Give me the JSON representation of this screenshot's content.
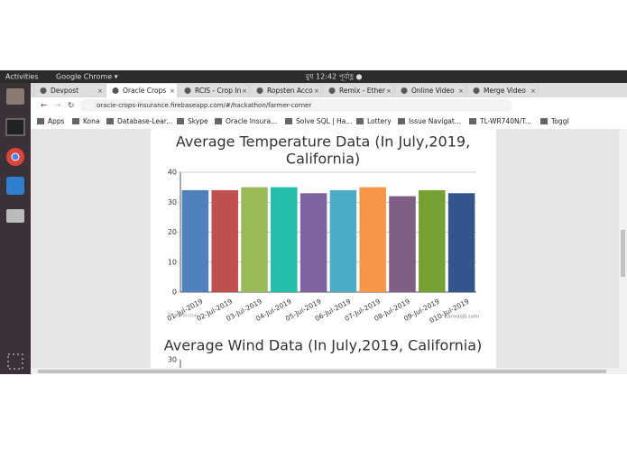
{
  "topbar": {
    "activities": "Activities",
    "app": "Google Chrome ▾",
    "clock": "বুধ 12:42 পূর্বাহ্ণ ●"
  },
  "tabs": [
    "Devpost",
    "Oracle Crops",
    "RCIS - Crop In",
    "Ropsten Acco",
    "Remix - Ether",
    "Online Video",
    "Merge Video"
  ],
  "address": "oracle-crops-insurance.firebaseapp.com/#/hackathon/farmer-corner",
  "bookmarks": [
    "Apps",
    "Kona",
    "Database-Lear...",
    "Skype",
    "Oracle Insura...",
    "Solve SQL | Ha...",
    "Lottery",
    "Issue Navigat...",
    "TL-WR740N/T...",
    "Toggl"
  ],
  "chart_data": [
    {
      "type": "bar",
      "title": [
        "Average Temperature Data (In July,2019,",
        "California)"
      ],
      "categories": [
        "01-Jul-2019",
        "02-Jul-2019",
        "03-Jul-2019",
        "04-Jul-2019",
        "05-Jul-2019",
        "06-Jul-2019",
        "07-Jul-2019",
        "08-Jul-2019",
        "09-Jul-2019",
        "010-Jul-2019"
      ],
      "values": [
        34,
        34,
        35,
        35,
        33,
        34,
        35,
        32,
        34,
        33
      ],
      "colors": [
        "#4f81bc",
        "#c0504e",
        "#9bbb58",
        "#23bfaa",
        "#8064a1",
        "#4aacc5",
        "#f79647",
        "#7f6084",
        "#77a033",
        "#33558b"
      ],
      "ylim": [
        0,
        40
      ],
      "yticks": [
        0,
        10,
        20,
        30,
        40
      ],
      "grid": true,
      "watermark": "Trial Version",
      "credit": "CanvasJS.com"
    },
    {
      "type": "bar",
      "title": [
        "Average Wind Data (In July,2019, California)"
      ],
      "yticks": [
        30
      ]
    }
  ]
}
